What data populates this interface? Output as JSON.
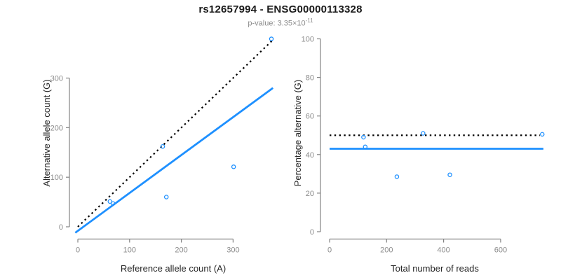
{
  "header": {
    "title": "rs12657994 - ENSG00000113328",
    "p_value_prefix": "p-value: 3.35×10",
    "p_value_exponent": "-11"
  },
  "colors": {
    "point_blue": "#1E90FF",
    "regression_blue": "#1E90FF",
    "reference_black": "#000000",
    "axis_gray": "#848484",
    "tick_label_gray": "#8c8c8c",
    "axis_title_dark": "#262626"
  },
  "chart_data": [
    {
      "type": "scatter",
      "panel": "left",
      "title": "",
      "xlabel": "Reference allele count (A)",
      "ylabel": "Alternative allele count (G)",
      "xticks": [
        0,
        100,
        200,
        300
      ],
      "yticks": [
        0,
        100,
        200,
        300
      ],
      "xlim": [
        0,
        380
      ],
      "ylim": [
        0,
        390
      ],
      "grid": false,
      "legend": "none",
      "points": [
        {
          "x": 62,
          "y": 51
        },
        {
          "x": 68,
          "y": 47
        },
        {
          "x": 164,
          "y": 162
        },
        {
          "x": 171,
          "y": 60
        },
        {
          "x": 301,
          "y": 121
        },
        {
          "x": 374,
          "y": 379
        }
      ],
      "lines": [
        {
          "name": "identity-line",
          "style": "dotted",
          "color": "#000000",
          "x1": 0,
          "y1": 0,
          "x2": 378,
          "y2": 378
        },
        {
          "name": "regression-line",
          "style": "solid",
          "color": "#1E90FF",
          "x1": -5,
          "y1": -12,
          "x2": 377,
          "y2": 280
        }
      ]
    },
    {
      "type": "scatter",
      "panel": "right",
      "title": "",
      "xlabel": "Total number of reads",
      "ylabel": "Percentage alternative (G)",
      "xticks": [
        0,
        200,
        400,
        600
      ],
      "yticks": [
        0,
        20,
        40,
        60,
        80,
        100
      ],
      "xlim": [
        0,
        770
      ],
      "ylim": [
        0,
        100
      ],
      "grid": false,
      "legend": "none",
      "points": [
        {
          "x": 119,
          "y": 49
        },
        {
          "x": 125,
          "y": 44
        },
        {
          "x": 236,
          "y": 28.5
        },
        {
          "x": 328,
          "y": 51
        },
        {
          "x": 422,
          "y": 29.5
        },
        {
          "x": 746,
          "y": 50.5
        }
      ],
      "lines": [
        {
          "name": "expected-50pct-line",
          "style": "dotted",
          "color": "#000000",
          "x1": 0,
          "y1": 50,
          "x2": 738,
          "y2": 50
        },
        {
          "name": "observed-mean-line",
          "style": "solid",
          "color": "#1E90FF",
          "x1": 0,
          "y1": 43,
          "x2": 750,
          "y2": 43
        }
      ]
    }
  ]
}
